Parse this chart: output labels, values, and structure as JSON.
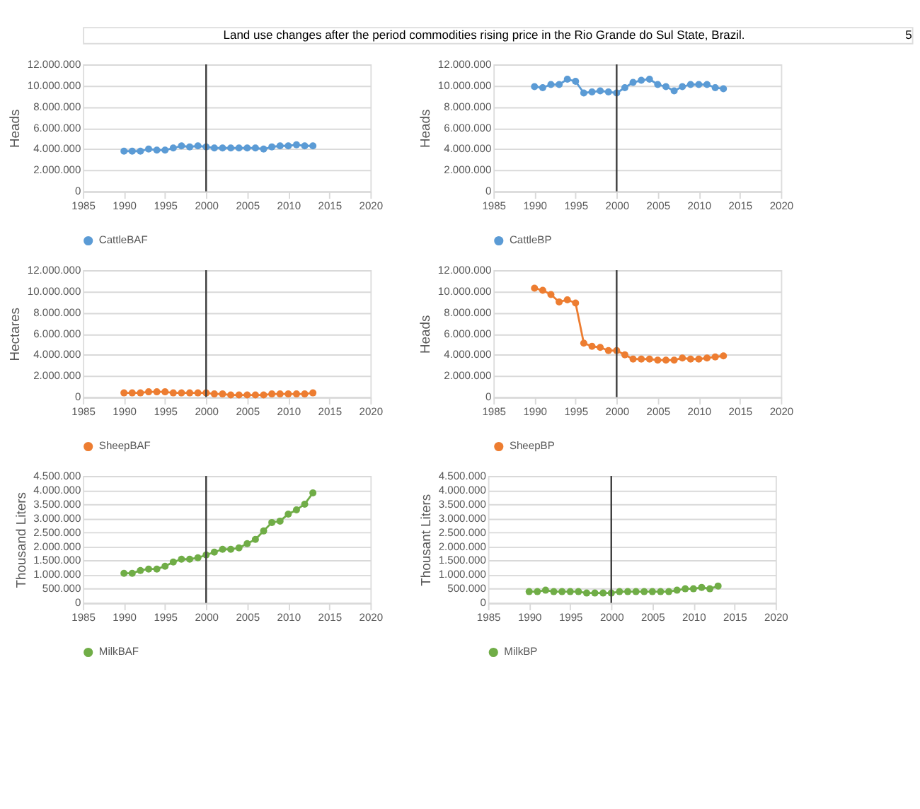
{
  "chart_data": [
    {
      "type": "line",
      "ylabel": "Heads",
      "annotations": [
        "Land use changes after the period commodities rising price in the Rio Grande do Sul State, Brazil.",
        "5"
      ],
      "x": [
        1990,
        1991,
        1992,
        1993,
        1994,
        1995,
        1996,
        1997,
        1998,
        1999,
        2000,
        2001,
        2002,
        2003,
        2004,
        2005,
        2006,
        2007,
        2008,
        2009,
        2010,
        2011,
        2012,
        2013
      ],
      "series": [
        {
          "name": "CattleBAF",
          "color": "#5b9bd5",
          "values": [
            3800000,
            3800000,
            3800000,
            4000000,
            3900000,
            3900000,
            4100000,
            4300000,
            4200000,
            4300000,
            4200000,
            4100000,
            4100000,
            4100000,
            4100000,
            4100000,
            4100000,
            4000000,
            4200000,
            4300000,
            4300000,
            4400000,
            4300000,
            4300000
          ]
        }
      ],
      "xlim": [
        1985,
        2020
      ],
      "xticks": [
        1985,
        1990,
        1995,
        2000,
        2005,
        2010,
        2015,
        2020
      ],
      "ylim": [
        0,
        12000000
      ],
      "yticks": [
        0,
        {
          "value": 2000000,
          "label": "2.000.000"
        },
        {
          "value": 4000000,
          "label": "4.000.000"
        },
        {
          "value": 6000000,
          "label": "6.000.000"
        },
        {
          "value": 8000000,
          "label": "8.000.000"
        },
        {
          "value": 10000000,
          "label": "10.000.000"
        },
        {
          "value": 12000000,
          "label": "12.000.000"
        }
      ],
      "ref_lines": [
        {
          "axis": "x",
          "value": 2000,
          "color": "#404040"
        }
      ],
      "grid": "y",
      "legend": "bottom",
      "marker": "circle",
      "line_style": "solid"
    },
    {
      "type": "line",
      "ylabel": "Heads",
      "x": [
        1990,
        1991,
        1992,
        1993,
        1994,
        1995,
        1996,
        1997,
        1998,
        1999,
        2000,
        2001,
        2002,
        2003,
        2004,
        2005,
        2006,
        2007,
        2008,
        2009,
        2010,
        2011,
        2012,
        2013
      ],
      "series": [
        {
          "name": "CattleBP",
          "color": "#5b9bd5",
          "values": [
            9900000,
            9800000,
            10100000,
            10100000,
            10600000,
            10400000,
            9300000,
            9400000,
            9500000,
            9400000,
            9300000,
            9800000,
            10300000,
            10500000,
            10600000,
            10100000,
            9900000,
            9500000,
            9900000,
            10100000,
            10100000,
            10100000,
            9800000,
            9700000
          ]
        }
      ],
      "xlim": [
        1985,
        2020
      ],
      "xticks": [
        1985,
        1990,
        1995,
        2000,
        2005,
        2010,
        2015,
        2020
      ],
      "ylim": [
        0,
        12000000
      ],
      "yticks": [
        0,
        {
          "value": 2000000,
          "label": "2.000.000"
        },
        {
          "value": 4000000,
          "label": "4.000.000"
        },
        {
          "value": 6000000,
          "label": "6.000.000"
        },
        {
          "value": 8000000,
          "label": "8.000.000"
        },
        {
          "value": 10000000,
          "label": "10.000.000"
        },
        {
          "value": 12000000,
          "label": "12.000.000"
        }
      ],
      "ref_lines": [
        {
          "axis": "x",
          "value": 2000,
          "color": "#404040"
        }
      ],
      "grid": "y",
      "legend": "bottom",
      "marker": "circle",
      "line_style": "solid"
    },
    {
      "type": "line",
      "ylabel": "Hectares",
      "x": [
        1990,
        1991,
        1992,
        1993,
        1994,
        1995,
        1996,
        1997,
        1998,
        1999,
        2000,
        2001,
        2002,
        2003,
        2004,
        2005,
        2006,
        2007,
        2008,
        2009,
        2010,
        2011,
        2012,
        2013
      ],
      "series": [
        {
          "name": "SheepBAF",
          "color": "#ed7d31",
          "values": [
            400000,
            400000,
            400000,
            500000,
            500000,
            500000,
            400000,
            400000,
            400000,
            400000,
            400000,
            300000,
            300000,
            200000,
            200000,
            200000,
            200000,
            200000,
            300000,
            300000,
            300000,
            300000,
            300000,
            400000
          ]
        }
      ],
      "xlim": [
        1985,
        2020
      ],
      "xticks": [
        1985,
        1990,
        1995,
        2000,
        2005,
        2010,
        2015,
        2020
      ],
      "ylim": [
        0,
        12000000
      ],
      "yticks": [
        0,
        {
          "value": 2000000,
          "label": "2.000.000"
        },
        {
          "value": 4000000,
          "label": "4.000.000"
        },
        {
          "value": 6000000,
          "label": "6.000.000"
        },
        {
          "value": 8000000,
          "label": "8.000.000"
        },
        {
          "value": 10000000,
          "label": "10.000.000"
        },
        {
          "value": 12000000,
          "label": "12.000.000"
        }
      ],
      "ref_lines": [
        {
          "axis": "x",
          "value": 2000,
          "color": "#404040"
        }
      ],
      "grid": "y",
      "legend": "bottom",
      "marker": "circle",
      "line_style": "solid"
    },
    {
      "type": "line",
      "ylabel": "Heads",
      "x": [
        1990,
        1991,
        1992,
        1993,
        1994,
        1995,
        1996,
        1997,
        1998,
        1999,
        2000,
        2001,
        2002,
        2003,
        2004,
        2005,
        2006,
        2007,
        2008,
        2009,
        2010,
        2011,
        2012,
        2013
      ],
      "series": [
        {
          "name": "SheepBP",
          "color": "#ed7d31",
          "values": [
            10300000,
            10100000,
            9700000,
            9000000,
            9200000,
            8900000,
            5100000,
            4800000,
            4700000,
            4400000,
            4400000,
            4000000,
            3600000,
            3600000,
            3600000,
            3500000,
            3500000,
            3500000,
            3700000,
            3600000,
            3600000,
            3700000,
            3800000,
            3900000
          ]
        }
      ],
      "xlim": [
        1985,
        2020
      ],
      "xticks": [
        1985,
        1990,
        1995,
        2000,
        2005,
        2010,
        2015,
        2020
      ],
      "ylim": [
        0,
        12000000
      ],
      "yticks": [
        0,
        {
          "value": 2000000,
          "label": "2.000.000"
        },
        {
          "value": 4000000,
          "label": "4.000.000"
        },
        {
          "value": 6000000,
          "label": "6.000.000"
        },
        {
          "value": 8000000,
          "label": "8.000.000"
        },
        {
          "value": 10000000,
          "label": "10.000.000"
        },
        {
          "value": 12000000,
          "label": "12.000.000"
        }
      ],
      "ref_lines": [
        {
          "axis": "x",
          "value": 2000,
          "color": "#404040"
        }
      ],
      "grid": "y",
      "legend": "bottom",
      "marker": "circle",
      "line_style": "solid"
    },
    {
      "type": "line",
      "ylabel": "Thousand Liters",
      "x": [
        1990,
        1991,
        1992,
        1993,
        1994,
        1995,
        1996,
        1997,
        1998,
        1999,
        2000,
        2001,
        2002,
        2003,
        2004,
        2005,
        2006,
        2007,
        2008,
        2009,
        2010,
        2011,
        2012,
        2013
      ],
      "series": [
        {
          "name": "MilkBAF",
          "color": "#70ad47",
          "values": [
            1050000,
            1050000,
            1150000,
            1200000,
            1200000,
            1300000,
            1450000,
            1550000,
            1550000,
            1600000,
            1700000,
            1800000,
            1900000,
            1900000,
            1950000,
            2100000,
            2250000,
            2550000,
            2850000,
            2900000,
            3150000,
            3300000,
            3500000,
            3900000
          ]
        }
      ],
      "xlim": [
        1985,
        2020
      ],
      "xticks": [
        1985,
        1990,
        1995,
        2000,
        2005,
        2010,
        2015,
        2020
      ],
      "ylim": [
        0,
        4500000
      ],
      "yticks": [
        0,
        {
          "value": 500000,
          "label": "500.000"
        },
        {
          "value": 1000000,
          "label": "1.000.000"
        },
        {
          "value": 1500000,
          "label": "1.500.000"
        },
        {
          "value": 2000000,
          "label": "2.000.000"
        },
        {
          "value": 2500000,
          "label": "2.500.000"
        },
        {
          "value": 3000000,
          "label": "3.000.000"
        },
        {
          "value": 3500000,
          "label": "3.500.000"
        },
        {
          "value": 4000000,
          "label": "4.000.000"
        },
        {
          "value": 4500000,
          "label": "4.500.000"
        }
      ],
      "ref_lines": [
        {
          "axis": "x",
          "value": 2000,
          "color": "#404040"
        }
      ],
      "grid": "y",
      "legend": "bottom",
      "marker": "circle",
      "line_style": "solid"
    },
    {
      "type": "line",
      "ylabel": "Thousant Liters",
      "x": [
        1990,
        1991,
        1992,
        1993,
        1994,
        1995,
        1996,
        1997,
        1998,
        1999,
        2000,
        2001,
        2002,
        2003,
        2004,
        2005,
        2006,
        2007,
        2008,
        2009,
        2010,
        2011,
        2012,
        2013
      ],
      "series": [
        {
          "name": "MilkBP",
          "color": "#70ad47",
          "values": [
            400000,
            400000,
            450000,
            400000,
            400000,
            400000,
            400000,
            350000,
            350000,
            350000,
            350000,
            400000,
            400000,
            400000,
            400000,
            400000,
            400000,
            400000,
            450000,
            500000,
            500000,
            550000,
            500000,
            600000
          ]
        }
      ],
      "xlim": [
        1985,
        2020
      ],
      "xticks": [
        1985,
        1990,
        1995,
        2000,
        2005,
        2010,
        2015,
        2020
      ],
      "ylim": [
        0,
        4500000
      ],
      "yticks": [
        0,
        {
          "value": 500000,
          "label": "500.000"
        },
        {
          "value": 1000000,
          "label": "1.000.000"
        },
        {
          "value": 1500000,
          "label": "1.500.000"
        },
        {
          "value": 2000000,
          "label": "2.000.000"
        },
        {
          "value": 2500000,
          "label": "2.500.000"
        },
        {
          "value": 3000000,
          "label": "3.000.000"
        },
        {
          "value": 3500000,
          "label": "3.500.000"
        },
        {
          "value": 4000000,
          "label": "4.000.000"
        },
        {
          "value": 4500000,
          "label": "4.500.000"
        }
      ],
      "ref_lines": [
        {
          "axis": "x",
          "value": 2000,
          "color": "#404040"
        }
      ],
      "grid": "y",
      "legend": "bottom",
      "marker": "circle",
      "line_style": "solid"
    }
  ]
}
